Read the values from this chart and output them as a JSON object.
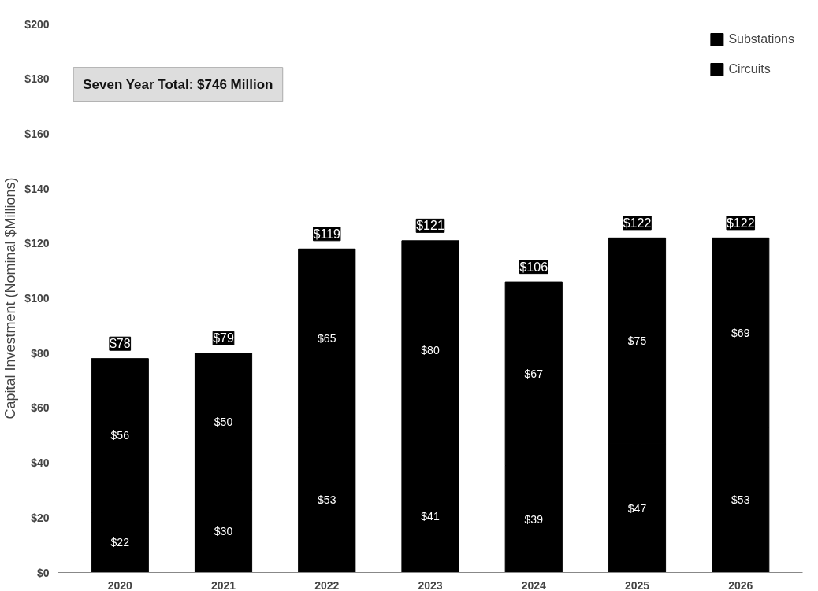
{
  "chart_data": {
    "type": "bar",
    "stacked": true,
    "ylabel": "Capital Investment (Nominal $Millions)",
    "annotations": [
      "Seven Year Total: $746 Million"
    ],
    "categories": [
      "2020",
      "2021",
      "2022",
      "2023",
      "2024",
      "2025",
      "2026"
    ],
    "series": [
      {
        "name": "Circuits",
        "color": "#000000",
        "values": [
          22,
          30,
          53,
          41,
          39,
          47,
          53
        ],
        "value_labels": [
          "$22",
          "$30",
          "$53",
          "$41",
          "$39",
          "$47",
          "$53"
        ]
      },
      {
        "name": "Substations",
        "color": "#000000",
        "values": [
          56,
          50,
          65,
          80,
          67,
          75,
          69
        ],
        "value_labels": [
          "$56",
          "$50",
          "$65",
          "$80",
          "$67",
          "$75",
          "$69"
        ]
      }
    ],
    "totals": [
      "$78",
      "$79",
      "$119",
      "$121",
      "$106",
      "$122",
      "$122"
    ],
    "ylim": [
      0,
      200
    ],
    "yticks": [
      {
        "value": 0,
        "label": "$0"
      },
      {
        "value": 20,
        "label": "$20"
      },
      {
        "value": 40,
        "label": "$40"
      },
      {
        "value": 60,
        "label": "$60"
      },
      {
        "value": 80,
        "label": "$80"
      },
      {
        "value": 100,
        "label": "$100"
      },
      {
        "value": 120,
        "label": "$120"
      },
      {
        "value": 140,
        "label": "$140"
      },
      {
        "value": 160,
        "label": "$160"
      },
      {
        "value": 180,
        "label": "$180"
      },
      {
        "value": 200,
        "label": "$200"
      }
    ],
    "grid": false,
    "legend": "top right"
  }
}
